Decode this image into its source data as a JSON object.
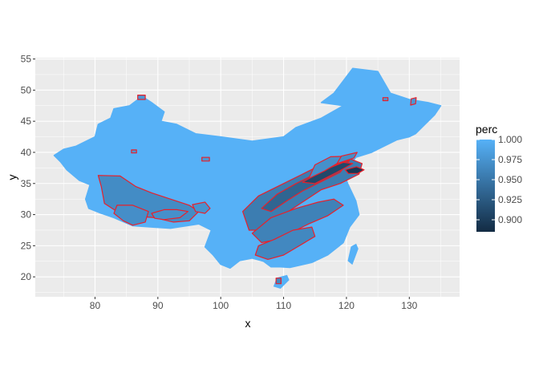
{
  "chart_data": {
    "type": "heatmap",
    "title": "",
    "xlabel": "x",
    "ylabel": "y",
    "xlim": [
      70.5,
      138
    ],
    "ylim": [
      16.8,
      55.2
    ],
    "x_ticks": [
      80,
      90,
      100,
      110,
      120,
      130
    ],
    "y_ticks": [
      20,
      25,
      30,
      35,
      40,
      45,
      50,
      55
    ],
    "grid": true,
    "panel_background": "#ebebeb",
    "grid_color": "#ffffff",
    "outline_color": "#e8202a",
    "legend": {
      "title": "perc",
      "position": "right",
      "breaks": [
        1.0,
        0.975,
        0.95,
        0.925,
        0.9
      ],
      "labels": [
        "1.000",
        "0.975",
        "0.950",
        "0.925",
        "0.900"
      ],
      "range": [
        0.885,
        1.0
      ],
      "low_color": "#132b43",
      "high_color": "#56b1f7"
    },
    "base_value": 1.0,
    "country_outline": [
      [
        73.5,
        39.5
      ],
      [
        75,
        40.5
      ],
      [
        77,
        41
      ],
      [
        80,
        42.5
      ],
      [
        80.5,
        44.5
      ],
      [
        82.5,
        45.5
      ],
      [
        83,
        47
      ],
      [
        85.5,
        47.5
      ],
      [
        87.5,
        49
      ],
      [
        89,
        48
      ],
      [
        91,
        46.5
      ],
      [
        90.5,
        45
      ],
      [
        93,
        44.5
      ],
      [
        96,
        43
      ],
      [
        100,
        42.5
      ],
      [
        105,
        41.8
      ],
      [
        110,
        42.5
      ],
      [
        112,
        44
      ],
      [
        116,
        45.5
      ],
      [
        119.5,
        47.5
      ],
      [
        116,
        48
      ],
      [
        118,
        49.5
      ],
      [
        121,
        53.5
      ],
      [
        125,
        53
      ],
      [
        127,
        49.5
      ],
      [
        130,
        48.5
      ],
      [
        133,
        48
      ],
      [
        135,
        47.5
      ],
      [
        134,
        46
      ],
      [
        131,
        43
      ],
      [
        130,
        42.5
      ],
      [
        128,
        42
      ],
      [
        125,
        40.5
      ],
      [
        124,
        40
      ],
      [
        121.5,
        39.2
      ],
      [
        121,
        38.5
      ],
      [
        122.5,
        37.3
      ],
      [
        119.5,
        37
      ],
      [
        120.2,
        35
      ],
      [
        121.5,
        32.2
      ],
      [
        122,
        30
      ],
      [
        120.5,
        28
      ],
      [
        119.5,
        25.5
      ],
      [
        117,
        23.5
      ],
      [
        114.5,
        22.3
      ],
      [
        111,
        21.5
      ],
      [
        109.5,
        21.6
      ],
      [
        108,
        21.6
      ],
      [
        106.8,
        22.5
      ],
      [
        105,
        23
      ],
      [
        103,
        22.6
      ],
      [
        101.5,
        21.4
      ],
      [
        100,
        22
      ],
      [
        98.8,
        23.5
      ],
      [
        97.5,
        24.8
      ],
      [
        98.5,
        27.5
      ],
      [
        96.5,
        28.5
      ],
      [
        92,
        27.8
      ],
      [
        89,
        28
      ],
      [
        86,
        28.2
      ],
      [
        83,
        29.5
      ],
      [
        81,
        30.2
      ],
      [
        79,
        31
      ],
      [
        78.5,
        32.5
      ],
      [
        79.2,
        34.8
      ],
      [
        77.5,
        35.5
      ],
      [
        75.5,
        37.2
      ],
      [
        74.5,
        38.5
      ]
    ],
    "hainan_outline": [
      [
        108.5,
        18.5
      ],
      [
        109.5,
        18.2
      ],
      [
        110.8,
        19.5
      ],
      [
        110.5,
        20.2
      ],
      [
        109,
        19.8
      ]
    ],
    "taiwan_outline": [
      [
        120.3,
        22.6
      ],
      [
        120.9,
        22.1
      ],
      [
        121.8,
        24.5
      ],
      [
        121.5,
        25.2
      ],
      [
        120.8,
        24.8
      ]
    ],
    "regions": [
      {
        "value": 0.955,
        "outline": [
          [
            103.5,
            30.5
          ],
          [
            106,
            33
          ],
          [
            110,
            35
          ],
          [
            113,
            36.5
          ],
          [
            117,
            38.5
          ],
          [
            120,
            39.2
          ],
          [
            122.5,
            38.2
          ],
          [
            122,
            36.5
          ],
          [
            119,
            35
          ],
          [
            116,
            34
          ],
          [
            113,
            32
          ],
          [
            110,
            30
          ],
          [
            107,
            27.5
          ],
          [
            104.5,
            27.5
          ]
        ]
      },
      {
        "value": 0.935,
        "outline": [
          [
            106.5,
            31
          ],
          [
            109,
            33.3
          ],
          [
            112,
            35
          ],
          [
            115,
            36.5
          ],
          [
            118,
            38
          ],
          [
            120.5,
            38.7
          ],
          [
            119,
            36.8
          ],
          [
            116,
            35.3
          ],
          [
            113,
            33.8
          ],
          [
            110.5,
            32.2
          ],
          [
            108,
            30.5
          ]
        ]
      },
      {
        "value": 0.91,
        "outline": [
          [
            113,
            35.2
          ],
          [
            116.5,
            37.2
          ],
          [
            119.5,
            38.4
          ],
          [
            121,
            38.2
          ],
          [
            118.5,
            36.8
          ],
          [
            115,
            35
          ]
        ]
      },
      {
        "value": 0.895,
        "outline": [
          [
            119.8,
            37.2
          ],
          [
            121.6,
            37.7
          ],
          [
            122.8,
            37.2
          ],
          [
            121.8,
            36.6
          ],
          [
            120.3,
            36.6
          ]
        ]
      },
      {
        "value": 0.96,
        "outline": [
          [
            105,
            27
          ],
          [
            108,
            29.5
          ],
          [
            112,
            31
          ],
          [
            115.5,
            32
          ],
          [
            118,
            32.5
          ],
          [
            119.5,
            31.5
          ],
          [
            117,
            29.8
          ],
          [
            114,
            28.5
          ],
          [
            111,
            27
          ],
          [
            109,
            26
          ],
          [
            106.5,
            25.5
          ]
        ]
      },
      {
        "value": 0.965,
        "outline": [
          [
            106,
            25
          ],
          [
            108.5,
            26
          ],
          [
            111.5,
            27.5
          ],
          [
            114.5,
            28
          ],
          [
            115,
            26.5
          ],
          [
            112.5,
            25
          ],
          [
            110,
            23.5
          ],
          [
            107.5,
            22.8
          ],
          [
            105.5,
            23.5
          ]
        ]
      },
      {
        "value": 0.968,
        "outline": [
          [
            80.5,
            36.3
          ],
          [
            84,
            36.2
          ],
          [
            86.5,
            34.5
          ],
          [
            89,
            33.5
          ],
          [
            92,
            32.5
          ],
          [
            95,
            31.5
          ],
          [
            96.5,
            30.5
          ],
          [
            95,
            29
          ],
          [
            92.5,
            28.8
          ],
          [
            89.5,
            29.5
          ],
          [
            86,
            29.8
          ],
          [
            83.5,
            30.5
          ],
          [
            81.5,
            31.8
          ],
          [
            81,
            34.5
          ]
        ]
      },
      {
        "value": 0.97,
        "outline": [
          [
            83.5,
            31.5
          ],
          [
            86,
            31.5
          ],
          [
            88.5,
            30.5
          ],
          [
            88,
            28.8
          ],
          [
            86,
            28.3
          ],
          [
            84.5,
            29
          ],
          [
            83,
            30.2
          ]
        ]
      },
      {
        "value": 0.972,
        "outline": [
          [
            89,
            30.2
          ],
          [
            91,
            30.8
          ],
          [
            93,
            30.8
          ],
          [
            94.8,
            30.5
          ],
          [
            93.5,
            29.5
          ],
          [
            91,
            29.2
          ],
          [
            89.5,
            29.4
          ]
        ]
      },
      {
        "value": 0.975,
        "outline": [
          [
            95.5,
            31.6
          ],
          [
            97.5,
            32
          ],
          [
            98.3,
            31
          ],
          [
            97.5,
            30.2
          ],
          [
            96,
            30.5
          ]
        ]
      },
      {
        "value": 0.972,
        "outline": [
          [
            114,
            35.8
          ],
          [
            116.5,
            37
          ],
          [
            118.5,
            38.2
          ],
          [
            119,
            39
          ],
          [
            121,
            39.4
          ],
          [
            117.5,
            39.3
          ],
          [
            115,
            38
          ]
        ]
      },
      {
        "value": 0.97,
        "outline": [
          [
            118.5,
            38.2
          ],
          [
            121.2,
            39.1
          ],
          [
            121.7,
            40
          ],
          [
            119.2,
            39.4
          ]
        ]
      },
      {
        "value": 0.965,
        "outline": [
          [
            108.8,
            18.9
          ],
          [
            109.6,
            18.9
          ],
          [
            109.6,
            19.8
          ],
          [
            108.8,
            19.8
          ]
        ]
      },
      {
        "value": 0.978,
        "outline": [
          [
            86.8,
            48.5
          ],
          [
            88,
            48.5
          ],
          [
            88,
            49.2
          ],
          [
            86.8,
            49.2
          ]
        ]
      },
      {
        "value": 0.978,
        "outline": [
          [
            130.2,
            47.6
          ],
          [
            131,
            47.8
          ],
          [
            131.1,
            48.8
          ],
          [
            130.3,
            48.6
          ]
        ]
      },
      {
        "value": 0.978,
        "outline": [
          [
            125.8,
            48.3
          ],
          [
            126.6,
            48.3
          ],
          [
            126.6,
            48.8
          ],
          [
            125.8,
            48.8
          ]
        ]
      },
      {
        "value": 0.978,
        "outline": [
          [
            97,
            38.6
          ],
          [
            98.2,
            38.6
          ],
          [
            98.2,
            39.2
          ],
          [
            97,
            39.2
          ]
        ]
      },
      {
        "value": 0.978,
        "outline": [
          [
            85.8,
            39.9
          ],
          [
            86.6,
            39.9
          ],
          [
            86.6,
            40.4
          ],
          [
            85.8,
            40.4
          ]
        ]
      }
    ]
  }
}
